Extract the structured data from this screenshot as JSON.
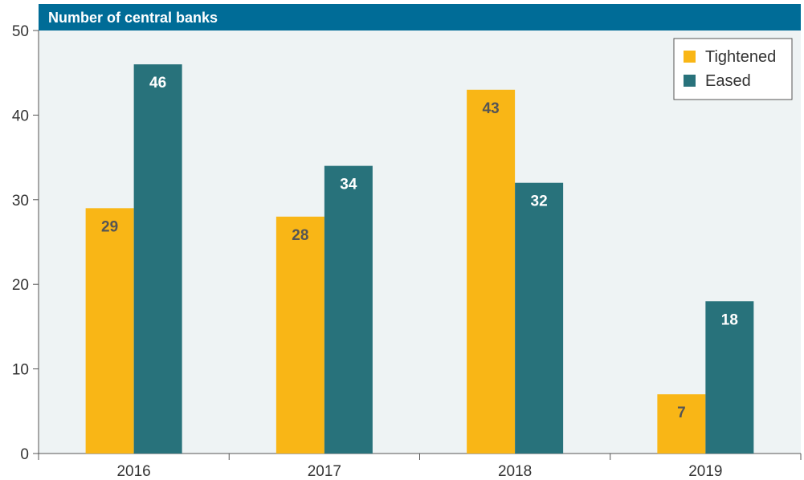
{
  "chart_data": {
    "type": "bar",
    "title": "Number of central banks",
    "categories": [
      "2016",
      "2017",
      "2018",
      "2019"
    ],
    "series": [
      {
        "name": "Tightened",
        "values": [
          29,
          28,
          43,
          7
        ],
        "color": "#F9B616"
      },
      {
        "name": "Eased",
        "values": [
          46,
          34,
          32,
          18
        ],
        "color": "#28727B"
      }
    ],
    "ylim": [
      0,
      50
    ],
    "yticks": [
      0,
      10,
      20,
      30,
      40,
      50
    ],
    "xlabel": "",
    "ylabel": "",
    "grid": false,
    "legend_position": "top-right",
    "colors": {
      "title_bar": "#006C97",
      "plot_background": "#EEF3F4",
      "tightened_label": "#555555",
      "eased_label": "#ffffff"
    }
  }
}
